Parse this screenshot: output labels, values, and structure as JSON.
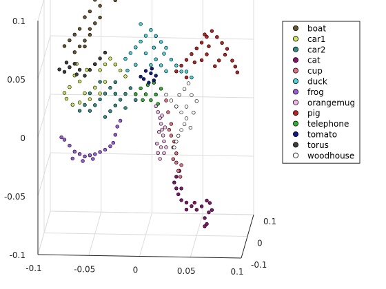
{
  "chart_data": {
    "type": "scatter",
    "projection": "3d",
    "title": "",
    "xlabel": "",
    "ylabel": "",
    "zlabel": "",
    "xlim": [
      -0.1,
      0.1
    ],
    "ylim": [
      -0.1,
      0.1
    ],
    "zlim": [
      -0.1,
      0.1
    ],
    "x_ticks": [
      "-0.1",
      "-0.05",
      "0",
      "0.05",
      "0.1"
    ],
    "y_ticks": [
      "-0.1",
      "0",
      "0.1"
    ],
    "z_ticks": [
      "-0.1",
      "-0.05",
      "0",
      "0.05",
      "0.1"
    ],
    "grid": true,
    "legend_placement": "top-right",
    "series": [
      {
        "name": "boat",
        "color": "#66552b",
        "points": [
          [
            -0.08,
            0,
            0.06
          ],
          [
            -0.075,
            0,
            0.065
          ],
          [
            -0.07,
            0,
            0.07
          ],
          [
            -0.065,
            0,
            0.075
          ],
          [
            -0.06,
            0,
            0.085
          ],
          [
            -0.055,
            0,
            0.09
          ],
          [
            -0.05,
            0,
            0.1
          ],
          [
            -0.045,
            0,
            0.11
          ],
          [
            -0.05,
            0,
            0.12
          ],
          [
            -0.04,
            0,
            0.11
          ],
          [
            -0.035,
            0,
            0.11
          ],
          [
            -0.045,
            0,
            0.095
          ],
          [
            -0.05,
            0,
            0.08
          ],
          [
            -0.055,
            0,
            0.07
          ],
          [
            -0.06,
            0,
            0.06
          ],
          [
            -0.07,
            0,
            0.055
          ],
          [
            -0.065,
            0,
            0.06
          ],
          [
            -0.055,
            0,
            0.075
          ],
          [
            -0.045,
            0,
            0.085
          ],
          [
            -0.03,
            0,
            0.1
          ],
          [
            -0.025,
            0,
            0.105
          ],
          [
            -0.06,
            0,
            0.065
          ]
        ]
      },
      {
        "name": "car1",
        "color": "#c9e84e",
        "points": [
          [
            -0.08,
            0,
            0.02
          ],
          [
            -0.078,
            0,
            0.015
          ],
          [
            -0.072,
            0,
            0.01
          ],
          [
            -0.065,
            0,
            0.012
          ],
          [
            -0.06,
            0,
            0.02
          ],
          [
            -0.065,
            0,
            0.03
          ],
          [
            -0.07,
            0,
            0.035
          ],
          [
            -0.058,
            0,
            0.04
          ],
          [
            -0.05,
            0,
            0.045
          ],
          [
            -0.045,
            0,
            0.04
          ],
          [
            -0.04,
            0,
            0.045
          ],
          [
            -0.035,
            0,
            0.05
          ],
          [
            -0.03,
            0,
            0.045
          ],
          [
            -0.025,
            0,
            0.04
          ],
          [
            -0.05,
            0,
            0.025
          ],
          [
            -0.045,
            0,
            0.02
          ],
          [
            -0.055,
            0,
            0.015
          ],
          [
            -0.075,
            0,
            0.025
          ],
          [
            -0.068,
            0,
            0.045
          ],
          [
            -0.04,
            0,
            0.03
          ],
          [
            -0.02,
            0,
            0.035
          ]
        ]
      },
      {
        "name": "car2",
        "color": "#2a9285",
        "points": [
          [
            -0.06,
            0,
            0.01
          ],
          [
            -0.055,
            0,
            0.005
          ],
          [
            -0.05,
            0,
            0.01
          ],
          [
            -0.045,
            0,
            0.015
          ],
          [
            -0.04,
            0,
            0.02
          ],
          [
            -0.035,
            0,
            0.025
          ],
          [
            -0.03,
            0,
            0.02
          ],
          [
            -0.025,
            0,
            0.015
          ],
          [
            -0.02,
            0,
            0.02
          ],
          [
            -0.015,
            0,
            0.025
          ],
          [
            -0.035,
            0,
            0.005
          ],
          [
            -0.04,
            0,
            0
          ],
          [
            -0.03,
            0,
            0.01
          ],
          [
            -0.02,
            0,
            0.008
          ],
          [
            -0.045,
            0,
            0.03
          ],
          [
            -0.055,
            0,
            0.02
          ],
          [
            -0.01,
            0,
            0.015
          ],
          [
            -0.065,
            0,
            0.005
          ],
          [
            -0.03,
            0,
            0.03
          ]
        ]
      },
      {
        "name": "cat",
        "color": "#8c0f6e",
        "points": [
          [
            0.03,
            0,
            -0.05
          ],
          [
            0.028,
            0,
            -0.055
          ],
          [
            0.03,
            0,
            -0.06
          ],
          [
            0.032,
            0,
            -0.065
          ],
          [
            0.035,
            0,
            -0.07
          ],
          [
            0.04,
            0,
            -0.072
          ],
          [
            0.045,
            0,
            -0.075
          ],
          [
            0.05,
            0,
            -0.078
          ],
          [
            0.055,
            0,
            -0.075
          ],
          [
            0.06,
            0,
            -0.07
          ],
          [
            0.062,
            0,
            -0.08
          ],
          [
            0.058,
            0,
            -0.085
          ],
          [
            0.06,
            0,
            -0.09
          ],
          [
            0.065,
            0,
            -0.078
          ],
          [
            0.063,
            0,
            -0.072
          ],
          [
            0.04,
            0,
            -0.078
          ],
          [
            0.035,
            0,
            -0.06
          ],
          [
            0.033,
            0,
            -0.045
          ],
          [
            0.058,
            0,
            -0.092
          ],
          [
            0.048,
            0,
            -0.072
          ]
        ]
      },
      {
        "name": "cup",
        "color": "#e86a7f",
        "points": [
          [
            0.02,
            0,
            0.015
          ],
          [
            0.022,
            0,
            0.005
          ],
          [
            0.025,
            0,
            -0.005
          ],
          [
            0.025,
            0,
            -0.015
          ],
          [
            0.027,
            0,
            -0.025
          ],
          [
            0.03,
            0,
            -0.03
          ],
          [
            0.03,
            0,
            -0.038
          ],
          [
            0.032,
            0,
            -0.045
          ],
          [
            0.035,
            0,
            -0.04
          ],
          [
            0.028,
            0,
            -0.02
          ],
          [
            0.03,
            0,
            0.01
          ],
          [
            0.027,
            0,
            -0.035
          ],
          [
            0.034,
            0,
            -0.05
          ],
          [
            0.023,
            0,
            -0.01
          ]
        ]
      },
      {
        "name": "duck",
        "color": "#3ad8d8",
        "points": [
          [
            -0.02,
            0,
            0.05
          ],
          [
            -0.015,
            0,
            0.055
          ],
          [
            -0.01,
            0,
            0.06
          ],
          [
            -0.005,
            0,
            0.065
          ],
          [
            0,
            0,
            0.07
          ],
          [
            0.005,
            0,
            0.075
          ],
          [
            0.01,
            0,
            0.07
          ],
          [
            0.015,
            0,
            0.065
          ],
          [
            0.02,
            0,
            0.06
          ],
          [
            0.018,
            0,
            0.055
          ],
          [
            0.01,
            0,
            0.05
          ],
          [
            0,
            0,
            0.055
          ],
          [
            -0.01,
            0,
            0.045
          ],
          [
            0.005,
            0,
            0.045
          ],
          [
            0.015,
            0,
            0.045
          ],
          [
            0.025,
            0,
            0.05
          ],
          [
            -0.005,
            0,
            0.08
          ],
          [
            0.008,
            0,
            0.06
          ],
          [
            -0.018,
            0,
            0.04
          ],
          [
            0.02,
            0,
            0.04
          ],
          [
            0.03,
            0,
            0.045
          ],
          [
            0.035,
            0,
            0.04
          ],
          [
            0.045,
            0,
            0.035
          ],
          [
            0.04,
            0,
            0.04
          ]
        ]
      },
      {
        "name": "frog",
        "color": "#9b59e3",
        "points": [
          [
            -0.08,
            0,
            -0.02
          ],
          [
            -0.075,
            0,
            -0.025
          ],
          [
            -0.07,
            0,
            -0.03
          ],
          [
            -0.065,
            0,
            -0.032
          ],
          [
            -0.06,
            0,
            -0.034
          ],
          [
            -0.055,
            0,
            -0.033
          ],
          [
            -0.05,
            0,
            -0.032
          ],
          [
            -0.045,
            0,
            -0.03
          ],
          [
            -0.04,
            0,
            -0.028
          ],
          [
            -0.035,
            0,
            -0.025
          ],
          [
            -0.032,
            0,
            -0.022
          ],
          [
            -0.03,
            0,
            -0.015
          ],
          [
            -0.028,
            0,
            -0.008
          ],
          [
            -0.025,
            0,
            -0.003
          ],
          [
            -0.072,
            0,
            -0.036
          ],
          [
            -0.062,
            0,
            -0.038
          ],
          [
            -0.052,
            0,
            -0.036
          ],
          [
            -0.083,
            0,
            -0.018
          ]
        ]
      },
      {
        "name": "orangemug",
        "color": "#f4b6e8",
        "points": [
          [
            0.01,
            0,
            0.01
          ],
          [
            0.012,
            0,
            0.005
          ],
          [
            0.014,
            0,
            0
          ],
          [
            0.015,
            0,
            -0.005
          ],
          [
            0.016,
            0,
            -0.01
          ],
          [
            0.017,
            0,
            -0.015
          ],
          [
            0.018,
            0,
            -0.02
          ],
          [
            0.015,
            0,
            -0.025
          ],
          [
            0.012,
            0,
            -0.03
          ],
          [
            0.014,
            0,
            -0.035
          ],
          [
            0.018,
            0,
            -0.03
          ],
          [
            0.02,
            0,
            -0.025
          ],
          [
            0.013,
            0,
            -0.012
          ],
          [
            0.016,
            0,
            0.002
          ],
          [
            0.011,
            0,
            -0.022
          ],
          [
            0.019,
            0,
            -0.008
          ]
        ]
      },
      {
        "name": "pig",
        "color": "#c21c1c",
        "points": [
          [
            0.03,
            0,
            0.04
          ],
          [
            0.035,
            0,
            0.045
          ],
          [
            0.04,
            0,
            0.05
          ],
          [
            0.045,
            0,
            0.055
          ],
          [
            0.05,
            0,
            0.06
          ],
          [
            0.055,
            0,
            0.065
          ],
          [
            0.06,
            0,
            0.07
          ],
          [
            0.065,
            0,
            0.075
          ],
          [
            0.07,
            0,
            0.07
          ],
          [
            0.075,
            0,
            0.065
          ],
          [
            0.08,
            0,
            0.06
          ],
          [
            0.078,
            0,
            0.055
          ],
          [
            0.072,
            0,
            0.05
          ],
          [
            0.068,
            0,
            0.045
          ],
          [
            0.06,
            0,
            0.055
          ],
          [
            0.055,
            0,
            0.05
          ],
          [
            0.085,
            0,
            0.05
          ],
          [
            0.088,
            0,
            0.045
          ],
          [
            0.09,
            0,
            0.04
          ],
          [
            0.062,
            0,
            0.062
          ],
          [
            0.058,
            0,
            0.072
          ],
          [
            0.048,
            0,
            0.048
          ],
          [
            0.04,
            0,
            0.035
          ]
        ]
      },
      {
        "name": "telephone",
        "color": "#27b826",
        "points": [
          [
            -0.01,
            0,
            0.02
          ],
          [
            -0.005,
            0,
            0.025
          ],
          [
            0,
            0,
            0.02
          ],
          [
            0.005,
            0,
            0.015
          ],
          [
            0.01,
            0,
            0.02
          ],
          [
            0.015,
            0,
            0.025
          ],
          [
            0.008,
            0,
            0.03
          ],
          [
            0.002,
            0,
            0.028
          ],
          [
            -0.003,
            0,
            0.015
          ],
          [
            0.012,
            0,
            0.012
          ]
        ]
      },
      {
        "name": "tomato",
        "color": "#0b1a8c",
        "points": [
          [
            -0.005,
            0,
            0.035
          ],
          [
            0,
            0,
            0.04
          ],
          [
            0.005,
            0,
            0.038
          ],
          [
            0.008,
            0,
            0.032
          ],
          [
            0.003,
            0,
            0.03
          ],
          [
            -0.002,
            0,
            0.033
          ],
          [
            0.006,
            0,
            0.042
          ],
          [
            0.01,
            0,
            0.036
          ]
        ]
      },
      {
        "name": "torus",
        "color": "#3c3c3c",
        "points": [
          [
            -0.085,
            0,
            0.04
          ],
          [
            -0.08,
            0,
            0.038
          ],
          [
            -0.075,
            0,
            0.042
          ],
          [
            -0.07,
            0,
            0.045
          ],
          [
            -0.065,
            0,
            0.04
          ],
          [
            -0.06,
            0,
            0.035
          ],
          [
            -0.055,
            0,
            0.04
          ],
          [
            -0.05,
            0,
            0.045
          ],
          [
            -0.045,
            0,
            0.05
          ],
          [
            -0.04,
            0,
            0.055
          ],
          [
            -0.078,
            0,
            0.046
          ],
          [
            -0.068,
            0,
            0.036
          ]
        ]
      },
      {
        "name": "woodhouse",
        "color": "#ffffff",
        "points": [
          [
            0.02,
            0,
            0.02
          ],
          [
            0.025,
            0,
            0.015
          ],
          [
            0.03,
            0,
            0.01
          ],
          [
            0.035,
            0,
            0.005
          ],
          [
            0.04,
            0,
            0
          ],
          [
            0.038,
            0,
            -0.005
          ],
          [
            0.035,
            0,
            -0.01
          ],
          [
            0.032,
            0,
            -0.015
          ],
          [
            0.03,
            0,
            -0.02
          ],
          [
            0.04,
            0,
            0.01
          ],
          [
            0.045,
            0,
            0.02
          ],
          [
            0.042,
            0,
            0.03
          ],
          [
            0.038,
            0,
            0.025
          ],
          [
            0.05,
            0,
            0.015
          ],
          [
            0.047,
            0,
            0.005
          ],
          [
            0.033,
            0,
            0.02
          ],
          [
            0.028,
            0,
            -0.025
          ],
          [
            0.044,
            0,
            -0.008
          ]
        ]
      }
    ]
  }
}
